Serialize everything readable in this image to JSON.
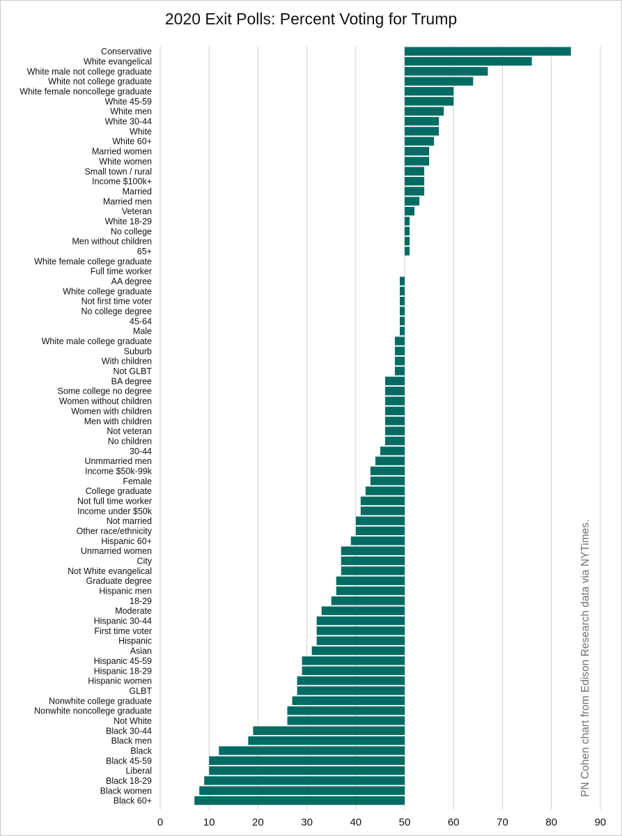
{
  "chart_data": {
    "type": "bar",
    "orientation": "horizontal",
    "title": "2020 Exit Polls: Percent Voting for Trump",
    "baseline": 50,
    "xlim": [
      0,
      90
    ],
    "xticks": [
      0,
      10,
      20,
      30,
      40,
      50,
      60,
      70,
      80,
      90
    ],
    "grid": "vertical",
    "legend": "none",
    "bar_color": "#006b63",
    "categories": [
      "Conservative",
      "White evangelical",
      "White male not college graduate",
      "White not college graduate",
      "White female noncollege graduate",
      "White 45-59",
      "White men",
      "White 30-44",
      "White",
      "White 60+",
      "Married women",
      "White women",
      "Small town / rural",
      "Income $100k+",
      "Married",
      "Married men",
      "Veteran",
      "White 18-29",
      "No college",
      "Men without children",
      "65+",
      "White female college graduate",
      "Full time worker",
      "AA degree",
      "White college graduate",
      "Not first time voter",
      "No college degree",
      "45-64",
      "Male",
      "White male college graduate",
      "Suburb",
      "With children",
      "Not GLBT",
      "BA degree",
      "Some college no degree",
      "Women without children",
      "Women with children",
      "Men with children",
      "Not veteran",
      "No children",
      "30-44",
      "Unmmarried men",
      "Income $50k-99k",
      "Female",
      "College graduate",
      "Not full time worker",
      "Income under $50k",
      "Not married",
      "Other race/ethnicity",
      "Hispanic 60+",
      "Unmarried women",
      "City",
      "Not White evangelical",
      "Graduate degree",
      "Hispanic men",
      "18-29",
      "Moderate",
      "Hispanic 30-44",
      "First time voter",
      "Hispanic",
      "Asian",
      "Hispanic 45-59",
      "Hispanic 18-29",
      "Hispanic women",
      "GLBT",
      "Nonwhite college graduate",
      "Nonwhite noncollege graduate",
      "Not White",
      "Black 30-44",
      "Black men",
      "Black",
      "Black 45-59",
      "Liberal",
      "Black 18-29",
      "Black women",
      "Black 60+"
    ],
    "values": [
      84,
      76,
      67,
      64,
      60,
      60,
      58,
      57,
      57,
      56,
      55,
      55,
      54,
      54,
      54,
      53,
      52,
      51,
      51,
      51,
      51,
      50,
      50,
      49,
      49,
      49,
      49,
      49,
      49,
      48,
      48,
      48,
      48,
      46,
      46,
      46,
      46,
      46,
      46,
      46,
      45,
      44,
      43,
      43,
      42,
      41,
      41,
      40,
      40,
      39,
      37,
      37,
      37,
      36,
      36,
      35,
      33,
      32,
      32,
      32,
      31,
      29,
      29,
      28,
      28,
      27,
      26,
      26,
      19,
      18,
      12,
      10,
      10,
      9,
      8,
      7
    ],
    "annotation": "PN Cohen chart from Edison Research data via NYTimes."
  }
}
